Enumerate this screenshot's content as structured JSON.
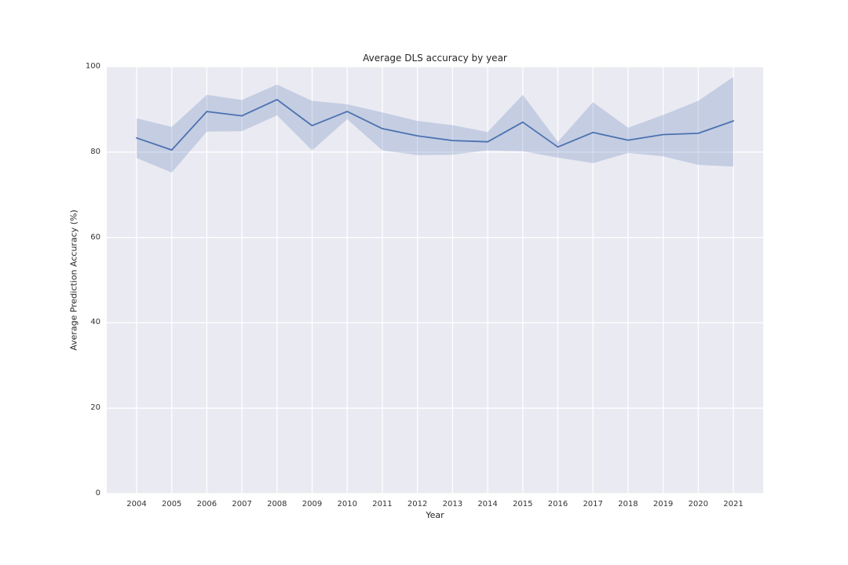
{
  "figure": {
    "title": "Average DLS accuracy by year",
    "xlabel": "Year",
    "ylabel": "Average Prediction Accuracy (%)"
  },
  "chart_data": {
    "type": "line",
    "title": "Average DLS accuracy by year",
    "xlabel": "Year",
    "ylabel": "Average Prediction Accuracy (%)",
    "x": [
      2004,
      2005,
      2006,
      2007,
      2008,
      2009,
      2010,
      2011,
      2012,
      2013,
      2014,
      2015,
      2016,
      2017,
      2018,
      2019,
      2020,
      2021
    ],
    "series": [
      {
        "name": "average-prediction-accuracy",
        "values": [
          83.3,
          80.5,
          89.5,
          88.5,
          92.3,
          86.2,
          89.5,
          85.5,
          83.8,
          82.7,
          82.4,
          87.0,
          81.2,
          84.6,
          82.8,
          84.1,
          84.4,
          87.3
        ]
      }
    ],
    "band": {
      "name": "confidence-interval",
      "lower": [
        78.6,
        75.2,
        84.8,
        84.9,
        88.6,
        80.4,
        87.7,
        80.4,
        79.3,
        79.4,
        80.4,
        80.2,
        78.7,
        77.4,
        79.8,
        79.0,
        77.0,
        76.6
      ],
      "upper": [
        87.9,
        85.9,
        93.4,
        92.2,
        95.8,
        92.0,
        91.2,
        89.3,
        87.3,
        86.3,
        84.7,
        93.4,
        82.4,
        91.7,
        85.7,
        88.7,
        92.0,
        97.6
      ]
    },
    "ylim": [
      0,
      100
    ],
    "yticks": [
      0,
      20,
      40,
      60,
      80,
      100
    ],
    "xticks": [
      2004,
      2005,
      2006,
      2007,
      2008,
      2009,
      2010,
      2011,
      2012,
      2013,
      2014,
      2015,
      2016,
      2017,
      2018,
      2019,
      2020,
      2021
    ],
    "x_margin": 0.05,
    "grid": true,
    "legend_position": "none",
    "colors": {
      "line": "#4c72b0",
      "band_fill": "rgba(76,114,176,0.24)",
      "axes_background": "#eaeaf2",
      "gridline": "#ffffff",
      "text": "#262626",
      "tick_text": "#333333"
    }
  }
}
